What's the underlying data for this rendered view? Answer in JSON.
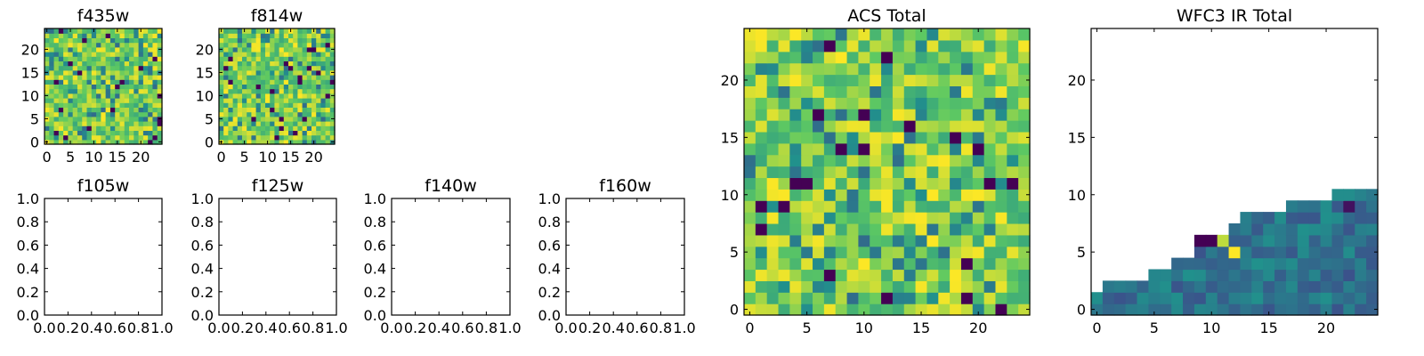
{
  "chart_data": [
    {
      "type": "heatmap",
      "title": "f435w",
      "xticks": [
        0,
        5,
        10,
        15,
        20
      ],
      "yticks": [
        0,
        5,
        10,
        15,
        20
      ],
      "xlim": [
        -0.5,
        24.5
      ],
      "ylim": [
        -0.5,
        24.5
      ],
      "grid_size": 25,
      "colormap": "viridis",
      "value_range": [
        0,
        1
      ],
      "values_note_free": true
    },
    {
      "type": "heatmap",
      "title": "f814w",
      "xticks": [
        0,
        5,
        10,
        15,
        20
      ],
      "yticks": [
        0,
        5,
        10,
        15,
        20
      ],
      "xlim": [
        -0.5,
        24.5
      ],
      "ylim": [
        -0.5,
        24.5
      ],
      "grid_size": 25,
      "colormap": "viridis",
      "value_range": [
        0,
        1
      ]
    },
    {
      "type": "heatmap",
      "title": "f105w",
      "xticks": [
        "0.0",
        "0.2",
        "0.4",
        "0.6",
        "0.8",
        "1.0"
      ],
      "yticks": [
        "0.0",
        "0.2",
        "0.4",
        "0.6",
        "0.8",
        "1.0"
      ],
      "xlim": [
        0,
        1
      ],
      "ylim": [
        0,
        1
      ],
      "empty": true
    },
    {
      "type": "heatmap",
      "title": "f125w",
      "xticks": [
        "0.0",
        "0.2",
        "0.4",
        "0.6",
        "0.8",
        "1.0"
      ],
      "yticks": [
        "0.0",
        "0.2",
        "0.4",
        "0.6",
        "0.8",
        "1.0"
      ],
      "xlim": [
        0,
        1
      ],
      "ylim": [
        0,
        1
      ],
      "empty": true
    },
    {
      "type": "heatmap",
      "title": "f140w",
      "xticks": [
        "0.0",
        "0.2",
        "0.4",
        "0.6",
        "0.8",
        "1.0"
      ],
      "yticks": [
        "0.0",
        "0.2",
        "0.4",
        "0.6",
        "0.8",
        "1.0"
      ],
      "xlim": [
        0,
        1
      ],
      "ylim": [
        0,
        1
      ],
      "empty": true
    },
    {
      "type": "heatmap",
      "title": "f160w",
      "xticks": [
        "0.0",
        "0.2",
        "0.4",
        "0.6",
        "0.8",
        "1.0"
      ],
      "yticks": [
        "0.0",
        "0.2",
        "0.4",
        "0.6",
        "0.8",
        "1.0"
      ],
      "xlim": [
        0,
        1
      ],
      "ylim": [
        0,
        1
      ],
      "empty": true
    },
    {
      "type": "heatmap",
      "title": "ACS Total",
      "xticks": [
        0,
        5,
        10,
        15,
        20
      ],
      "yticks": [
        0,
        5,
        10,
        15,
        20
      ],
      "xlim": [
        -0.5,
        24.5
      ],
      "ylim": [
        -0.5,
        24.5
      ],
      "grid_size": 25,
      "colormap": "viridis",
      "value_range": [
        0,
        1
      ]
    },
    {
      "type": "heatmap",
      "title": "WFC3 IR Total",
      "xticks": [
        0,
        5,
        10,
        15,
        20
      ],
      "yticks": [
        0,
        5,
        10,
        15,
        20
      ],
      "xlim": [
        -0.5,
        24.5
      ],
      "ylim": [
        -0.5,
        24.5
      ],
      "grid_size": 25,
      "colormap": "viridis",
      "value_range": [
        0,
        1
      ],
      "filled_region": "lower-right triangle, step edge rising from y=1 at x=0 to y=10 at x=24"
    }
  ]
}
